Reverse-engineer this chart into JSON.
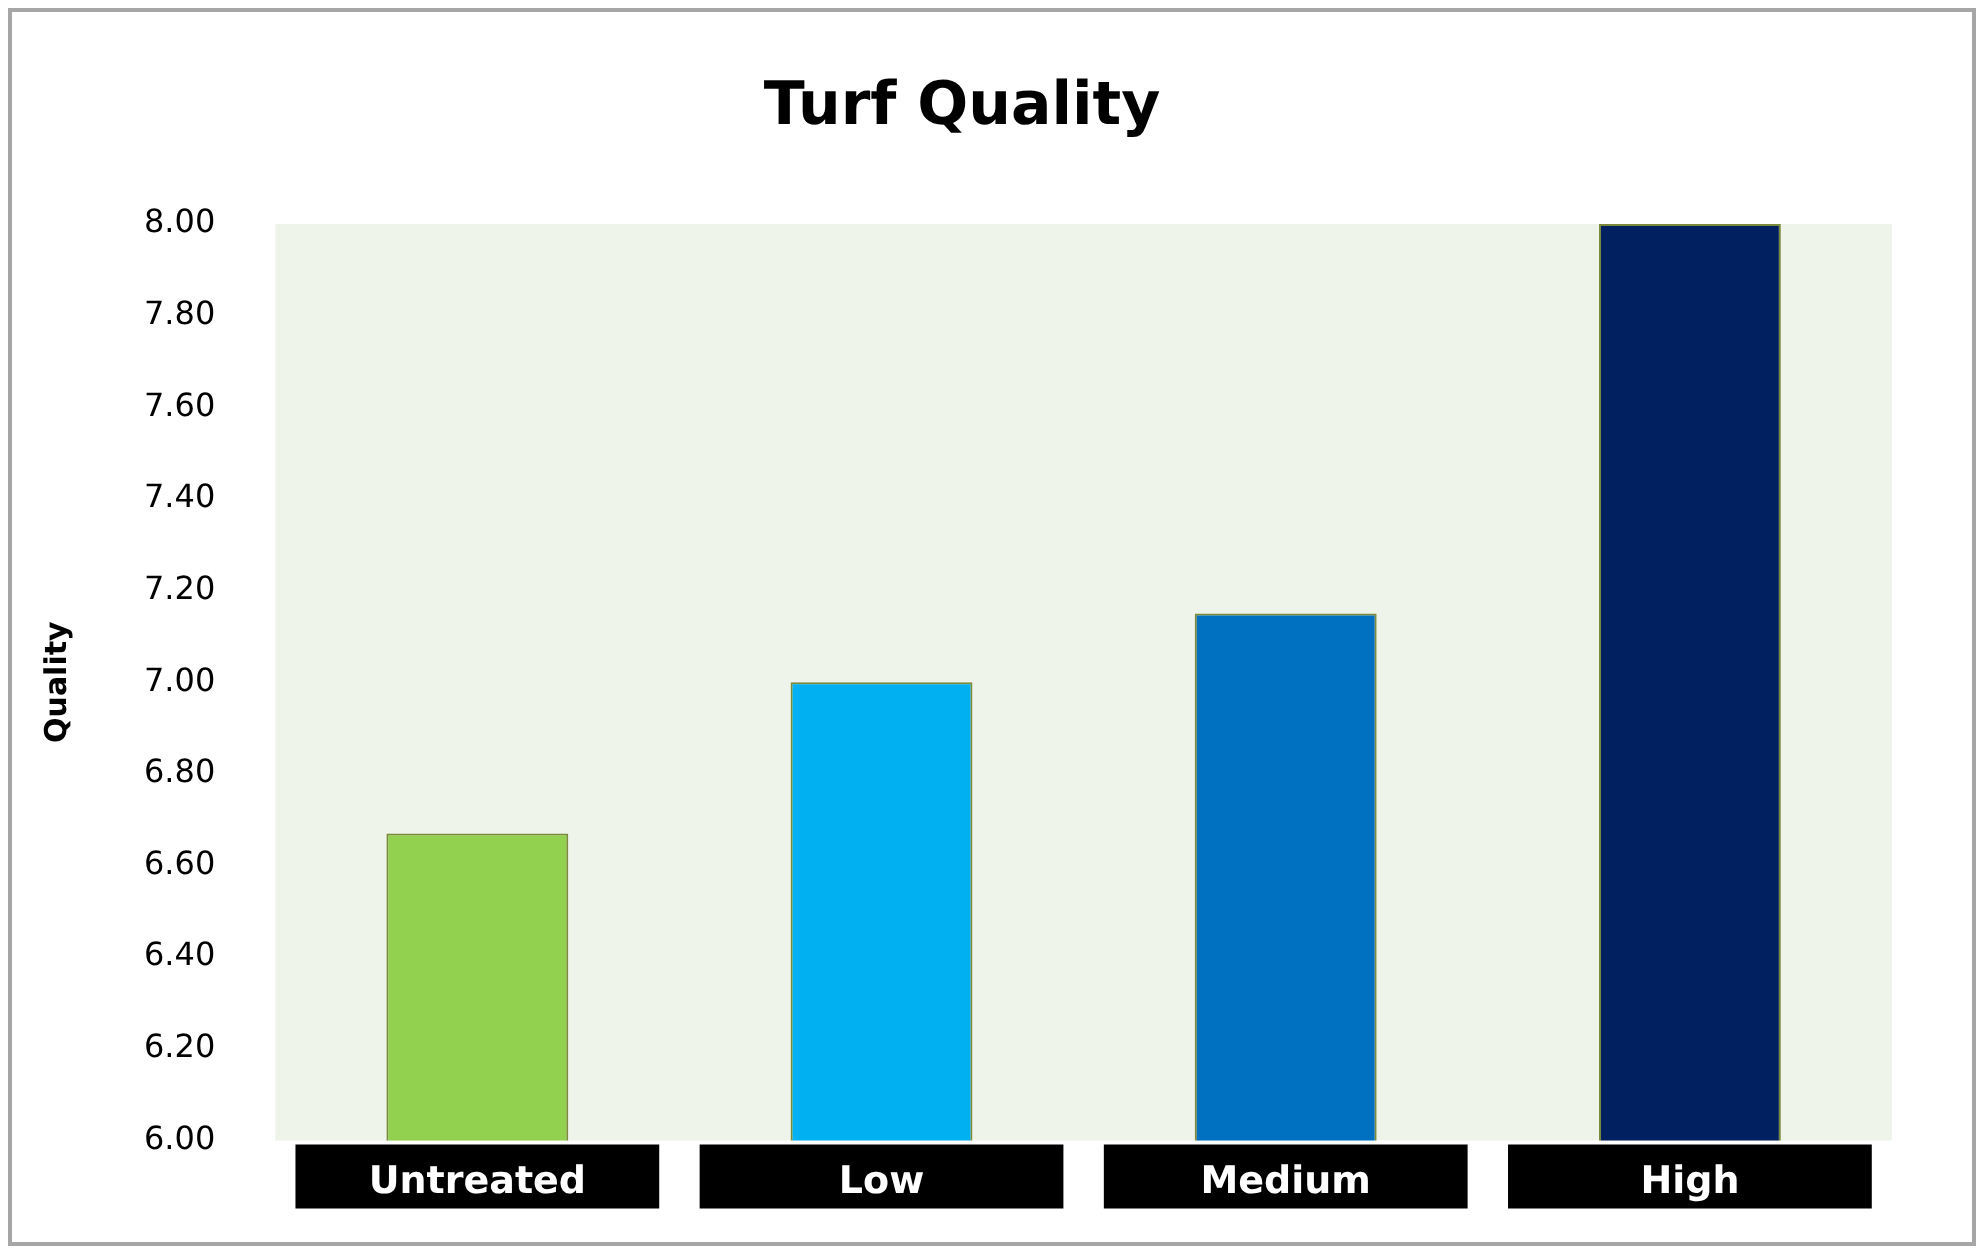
{
  "chart_data": {
    "type": "bar",
    "title": "Turf Quality",
    "ylabel": "Quality",
    "categories": [
      "Untreated",
      "Low",
      "Medium",
      "High"
    ],
    "values": [
      6.67,
      7.0,
      7.15,
      8.0
    ],
    "colors": [
      "#92d050",
      "#00b0f0",
      "#0070c0",
      "#002060"
    ],
    "ylim": [
      6,
      8
    ],
    "yticks": [
      {
        "value": 6,
        "label": "6.00"
      },
      {
        "value": 6.2,
        "label": "6.20"
      },
      {
        "value": 6.4,
        "label": "6.40"
      },
      {
        "value": 6.6,
        "label": "6.60"
      },
      {
        "value": 6.8,
        "label": "6.80"
      },
      {
        "value": 7,
        "label": "7.00"
      },
      {
        "value": 7.2,
        "label": "7.20"
      },
      {
        "value": 7.4,
        "label": "7.40"
      },
      {
        "value": 7.6,
        "label": "7.60"
      },
      {
        "value": 7.8,
        "label": "7.80"
      },
      {
        "value": 8,
        "label": "8.00"
      }
    ],
    "grid": false,
    "legend": false
  }
}
